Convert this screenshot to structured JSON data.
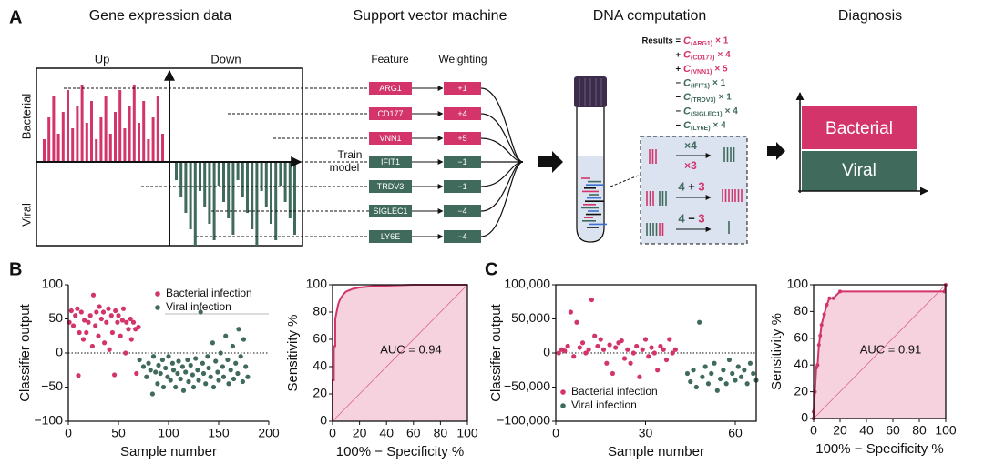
{
  "panel_labels": [
    "A",
    "B",
    "C"
  ],
  "panel_a": {
    "titles": [
      "Gene expression data",
      "Support vector machine",
      "DNA computation",
      "Diagnosis"
    ],
    "up": "Up",
    "down": "Down",
    "bacterial": "Bacterial",
    "viral": "Viral",
    "train_model": [
      "Train",
      "model"
    ],
    "feature_header": "Feature",
    "weighting_header": "Weighting",
    "features": [
      {
        "name": "ARG1",
        "weight": "+1",
        "color": "#d3346a"
      },
      {
        "name": "CD177",
        "weight": "+4",
        "color": "#d3346a"
      },
      {
        "name": "VNN1",
        "weight": "+5",
        "color": "#d3346a"
      },
      {
        "name": "IFIT1",
        "weight": "−1",
        "color": "#3f6a5c"
      },
      {
        "name": "TRDV3",
        "weight": "−1",
        "color": "#3f6a5c"
      },
      {
        "name": "SIGLEC1",
        "weight": "−4",
        "color": "#3f6a5c"
      },
      {
        "name": "LY6E",
        "weight": "−4",
        "color": "#3f6a5c"
      }
    ],
    "results": [
      {
        "sign": "Results =",
        "coef": "C",
        "sub": "(ARG1)",
        "factor": "× 1",
        "color": "#d3346a"
      },
      {
        "sign": "+",
        "coef": "C",
        "sub": "(CD177)",
        "factor": "× 4",
        "color": "#d3346a"
      },
      {
        "sign": "+",
        "coef": "C",
        "sub": "(VNN1)",
        "factor": "× 5",
        "color": "#d3346a"
      },
      {
        "sign": "−",
        "coef": "C",
        "sub": "(IFIT1)",
        "factor": "× 1",
        "color": "#3f6a5c"
      },
      {
        "sign": "−",
        "coef": "C",
        "sub": "(TRDV3)",
        "factor": "× 1",
        "color": "#3f6a5c"
      },
      {
        "sign": "−",
        "coef": "C",
        "sub": "(SIGLEC1)",
        "factor": "× 4",
        "color": "#3f6a5c"
      },
      {
        "sign": "−",
        "coef": "C",
        "sub": "(LY6E)",
        "factor": "× 4",
        "color": "#3f6a5c"
      }
    ],
    "dna_ops": {
      "top": "×4",
      "bottom": "×3",
      "sum": [
        "4",
        "+",
        "3"
      ],
      "diff": [
        "4",
        "−",
        "3"
      ]
    },
    "diagnosis": {
      "bacterial": "Bacterial",
      "viral": "Viral",
      "bacterial_color": "#d3346a",
      "viral_color": "#3f6a5c"
    }
  },
  "chart_data": [
    {
      "type": "scatter",
      "xlabel": "Sample number",
      "ylabel": "Classifier output",
      "xlim": [
        0,
        200
      ],
      "xticks": [
        0,
        50,
        100,
        150,
        200
      ],
      "ylim": [
        -100,
        100
      ],
      "yticks": [
        {
          "value": -100,
          "label": "−100"
        },
        {
          "value": -50,
          "label": "−50"
        },
        0,
        50,
        100
      ],
      "zero_line": true,
      "legend": "upper right",
      "series": [
        {
          "name": "Bacterial infection",
          "color": "#d3346a",
          "x": [
            1,
            3,
            5,
            7,
            9,
            10,
            11,
            13,
            15,
            16,
            18,
            20,
            22,
            24,
            25,
            27,
            28,
            30,
            31,
            33,
            35,
            36,
            38,
            40,
            41,
            43,
            44,
            46,
            47,
            49,
            50,
            52,
            54,
            55,
            57,
            58,
            60,
            62,
            63,
            65,
            67,
            68,
            70
          ],
          "values": [
            45,
            62,
            40,
            55,
            65,
            -33,
            30,
            60,
            20,
            48,
            30,
            45,
            55,
            10,
            85,
            40,
            60,
            25,
            68,
            50,
            60,
            15,
            45,
            65,
            5,
            55,
            30,
            -32,
            62,
            45,
            55,
            25,
            48,
            65,
            0,
            45,
            35,
            50,
            20,
            45,
            35,
            -30,
            38
          ]
        },
        {
          "name": "Viral infection",
          "color": "#3f6a5c",
          "x": [
            71,
            75,
            78,
            80,
            82,
            84,
            85,
            87,
            89,
            90,
            92,
            94,
            95,
            97,
            99,
            100,
            102,
            104,
            105,
            107,
            109,
            110,
            112,
            114,
            115,
            117,
            119,
            120,
            122,
            124,
            125,
            127,
            129,
            130,
            132,
            134,
            135,
            137,
            139,
            140,
            142,
            144,
            145,
            147,
            149,
            150,
            152,
            154,
            155,
            157,
            159,
            160,
            162,
            164,
            165,
            167,
            169,
            170,
            172,
            174,
            175,
            177,
            179
          ],
          "values": [
            -10,
            -20,
            -35,
            -15,
            -25,
            -60,
            -5,
            -28,
            -45,
            -18,
            -30,
            -10,
            -50,
            -22,
            -35,
            -5,
            -40,
            -15,
            -25,
            -50,
            -30,
            -12,
            -38,
            -20,
            -55,
            -28,
            -10,
            -42,
            -18,
            -32,
            -50,
            -8,
            -25,
            -40,
            60,
            -15,
            -30,
            -45,
            -5,
            -22,
            -35,
            15,
            -50,
            -12,
            -28,
            -40,
            0,
            -20,
            -35,
            25,
            -10,
            -45,
            -25,
            10,
            -38,
            -15,
            -30,
            35,
            -5,
            -42,
            20,
            -20,
            -35
          ]
        }
      ]
    },
    {
      "type": "line",
      "xlabel": "100% − Specificity %",
      "ylabel": "Sensitivity %",
      "xlim": [
        0,
        100
      ],
      "xticks": [
        0,
        20,
        40,
        60,
        80,
        100
      ],
      "ylim": [
        0,
        100
      ],
      "yticks": [
        0,
        20,
        40,
        60,
        80,
        100
      ],
      "color": "#d3346a",
      "fill_under": true,
      "diagonal": true,
      "markers": false,
      "annotation": "AUC = 0.94",
      "x": [
        0,
        0,
        1,
        1,
        2,
        2,
        3,
        4,
        5,
        6,
        8,
        10,
        15,
        20,
        30,
        60,
        100
      ],
      "values": [
        0,
        30,
        30,
        55,
        55,
        75,
        80,
        85,
        88,
        90,
        93,
        95,
        97,
        98,
        99,
        100,
        100
      ]
    },
    {
      "type": "scatter",
      "xlabel": "Sample number",
      "ylabel": "Classifier output",
      "xlim": [
        0,
        67
      ],
      "xticks": [
        0,
        30,
        60
      ],
      "ylim": [
        -100000,
        100000
      ],
      "yticks": [
        {
          "value": -100000,
          "label": "−100,000"
        },
        {
          "value": -50000,
          "label": "−50,000"
        },
        0,
        {
          "value": 50000,
          "label": "50,000"
        },
        {
          "value": 100000,
          "label": "100,000"
        }
      ],
      "zero_line": true,
      "legend": "lower left",
      "series": [
        {
          "name": "Bacterial infection",
          "color": "#d3346a",
          "x": [
            1,
            2,
            3,
            4,
            5,
            6,
            7,
            8,
            9,
            10,
            11,
            12,
            13,
            14,
            15,
            16,
            17,
            18,
            19,
            20,
            21,
            22,
            23,
            24,
            25,
            26,
            27,
            28,
            29,
            30,
            31,
            32,
            33,
            34,
            35,
            36,
            37,
            38,
            39,
            40
          ],
          "values": [
            0,
            5000,
            3000,
            10000,
            60000,
            -5000,
            45000,
            8000,
            15000,
            0,
            5000,
            78000,
            25000,
            10000,
            20000,
            5000,
            -15000,
            12000,
            -30000,
            8000,
            15000,
            18000,
            -8000,
            5000,
            -15000,
            0,
            10000,
            -35000,
            5000,
            20000,
            -5000,
            8000,
            0,
            -25000,
            10000,
            5000,
            -10000,
            20000,
            0,
            5000
          ]
        },
        {
          "name": "Viral infection",
          "color": "#3f6a5c",
          "x": [
            44,
            45,
            46,
            47,
            48,
            49,
            50,
            51,
            52,
            53,
            54,
            55,
            56,
            57,
            58,
            59,
            60,
            61,
            62,
            63,
            64,
            65,
            66,
            67
          ],
          "values": [
            -30000,
            -42000,
            -25000,
            -50000,
            45000,
            -35000,
            -20000,
            -45000,
            -30000,
            -15000,
            -55000,
            -38000,
            -25000,
            -45000,
            -10000,
            -30000,
            -40000,
            -20000,
            -35000,
            -25000,
            -45000,
            -15000,
            -30000,
            -40000
          ]
        }
      ]
    },
    {
      "type": "line",
      "xlabel": "100% − Specificity %",
      "ylabel": "Sensitivity %",
      "xlim": [
        0,
        100
      ],
      "xticks": [
        0,
        20,
        40,
        60,
        80,
        100
      ],
      "ylim": [
        0,
        100
      ],
      "yticks": [
        0,
        20,
        40,
        60,
        80,
        100
      ],
      "color": "#d3346a",
      "fill_under": true,
      "diagonal": true,
      "markers": true,
      "annotation": "AUC = 0.91",
      "x": [
        0,
        0,
        1,
        2,
        3,
        4,
        5,
        6,
        8,
        10,
        12,
        15,
        20,
        99,
        100
      ],
      "values": [
        0,
        5,
        20,
        38,
        40,
        55,
        62,
        70,
        78,
        85,
        90,
        90,
        95,
        95,
        100
      ]
    }
  ]
}
